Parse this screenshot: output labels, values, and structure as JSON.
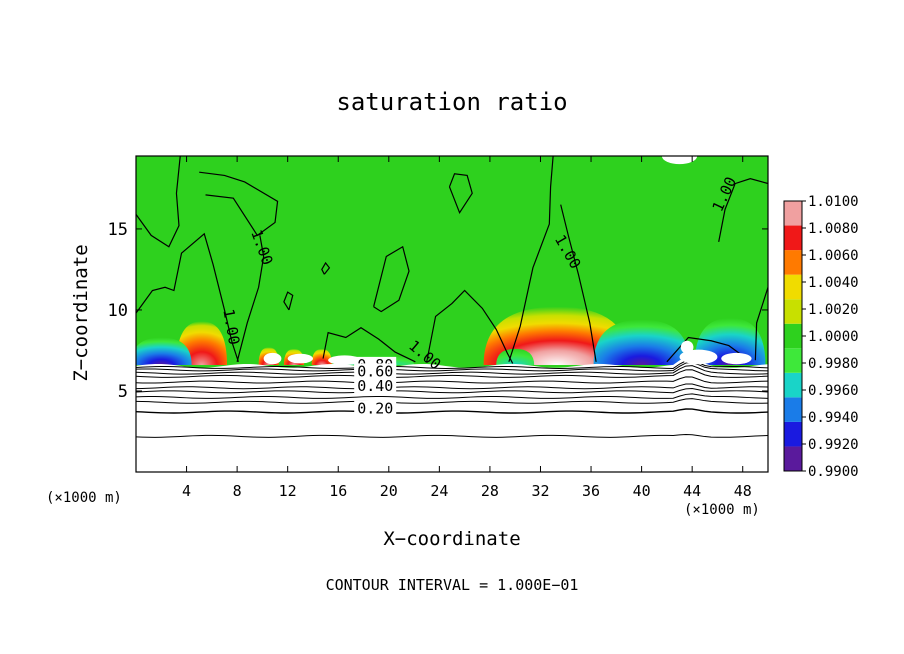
{
  "chart_data": {
    "type": "heatmap",
    "title": "saturation ratio",
    "xlabel": "X−coordinate",
    "ylabel": "Z−coordinate",
    "x_unit": "(×1000 m)",
    "y_unit": "(×1000 m)",
    "xlim": [
      0,
      50
    ],
    "ylim": [
      0,
      19.5
    ],
    "x_ticks": [
      4,
      8,
      12,
      16,
      20,
      24,
      28,
      32,
      36,
      40,
      44,
      48
    ],
    "y_ticks": [
      5,
      10,
      15
    ],
    "colorbar": {
      "min": 0.99,
      "max": 1.01,
      "levels": [
        0.99,
        0.992,
        0.994,
        0.996,
        0.998,
        1.0,
        1.002,
        1.004,
        1.006,
        1.008,
        1.01
      ],
      "labels": [
        "0.9900",
        "0.9920",
        "0.9940",
        "0.9960",
        "0.9980",
        "1.0000",
        "1.0020",
        "1.0040",
        "1.0060",
        "1.0080",
        "1.0100"
      ],
      "colors": [
        "#5a1a9c",
        "#1a1ae0",
        "#1a7ce8",
        "#19d4c8",
        "#3ee83a",
        "#2ed11e",
        "#c8e000",
        "#f0dc00",
        "#ff7a00",
        "#f01818",
        "#f0a0a0"
      ]
    },
    "contour_interval_text": "CONTOUR INTERVAL = 1.000E−01",
    "contour_labels": [
      {
        "text": "1.00",
        "x": 9.1,
        "z": 14.8
      },
      {
        "text": "1.00",
        "x": 6.9,
        "z": 10.0
      },
      {
        "text": "1.00",
        "x": 21.5,
        "z": 7.7
      },
      {
        "text": "1.00",
        "x": 33.1,
        "z": 14.4
      },
      {
        "text": "1.00",
        "x": 46.3,
        "z": 16.0
      },
      {
        "text": "0.80",
        "x": 17.5,
        "z": 6.3
      },
      {
        "text": "0.60",
        "x": 17.5,
        "z": 5.9
      },
      {
        "text": "0.40",
        "x": 17.5,
        "z": 5.0
      },
      {
        "text": "0.20",
        "x": 17.5,
        "z": 3.6
      }
    ],
    "features": [
      {
        "type": "supersaturation",
        "x_center": 5.2,
        "half_width": 2.0,
        "z_top": 9.3,
        "peak": 1.008
      },
      {
        "type": "supersaturation",
        "x_center": 10.5,
        "half_width": 0.8,
        "z_top": 7.7,
        "peak": 1.006
      },
      {
        "type": "supersaturation",
        "x_center": 12.5,
        "half_width": 0.8,
        "z_top": 7.6,
        "peak": 1.006
      },
      {
        "type": "supersaturation",
        "x_center": 14.7,
        "half_width": 0.8,
        "z_top": 7.6,
        "peak": 1.006
      },
      {
        "type": "supersaturation",
        "x_center": 33.3,
        "half_width": 5.8,
        "z_top": 10.2,
        "peak": 1.01
      },
      {
        "type": "subsaturation",
        "x_center": 2.0,
        "half_width": 2.4,
        "z_top": 8.3,
        "min": 0.992
      },
      {
        "type": "subsaturation",
        "x_center": 40.0,
        "half_width": 3.8,
        "z_top": 9.4,
        "min": 0.992
      },
      {
        "type": "subsaturation",
        "x_center": 47.0,
        "half_width": 2.8,
        "z_top": 9.5,
        "min": 0.993
      },
      {
        "type": "subsaturation",
        "x_center": 30.0,
        "half_width": 1.5,
        "z_top": 7.6,
        "min": 0.996
      },
      {
        "type": "subsaturation",
        "x_center": 19.0,
        "half_width": 3.0,
        "z_top": 7.2,
        "min": 0.997
      }
    ]
  }
}
